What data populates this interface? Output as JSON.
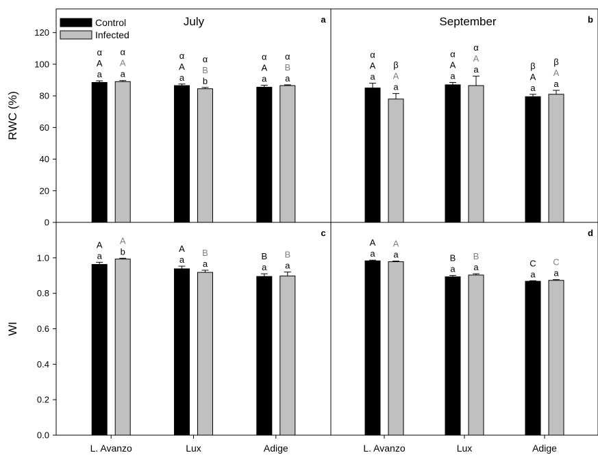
{
  "colors": {
    "control": "#000000",
    "infected": "#c0c0c0",
    "infected_letter": "#808080"
  },
  "chart_data": [
    {
      "panel": "a",
      "type": "bar",
      "title": "July",
      "ylabel": "RWC (%)",
      "xlabel": "",
      "ylim": [
        0,
        135
      ],
      "yticks": [
        "0",
        "20",
        "40",
        "60",
        "80",
        "100",
        "120"
      ],
      "categories": [
        "L. Avanzo",
        "Lux",
        "Adige"
      ],
      "series": [
        {
          "name": "Control",
          "values": [
            88.5,
            86.5,
            85.5
          ],
          "errors": [
            1.0,
            1.0,
            1.2
          ],
          "letters": [
            [
              "α",
              "A",
              "a"
            ],
            [
              "α",
              "A",
              "a"
            ],
            [
              "α",
              "A",
              "a"
            ]
          ]
        },
        {
          "name": "Infected",
          "values": [
            89.0,
            84.5,
            86.5
          ],
          "errors": [
            0.7,
            0.8,
            0.5
          ],
          "letters": [
            [
              "α",
              "A",
              "a"
            ],
            [
              "α",
              "B",
              "b"
            ],
            [
              "α",
              "B",
              "a"
            ]
          ]
        }
      ],
      "legend": "top-left"
    },
    {
      "panel": "b",
      "type": "bar",
      "title": "September",
      "ylabel": "",
      "xlabel": "",
      "ylim": [
        0,
        135
      ],
      "categories": [
        "L. Avanzo",
        "Lux",
        "Adige"
      ],
      "series": [
        {
          "name": "Control",
          "values": [
            85.0,
            87.0,
            79.5
          ],
          "errors": [
            3.0,
            1.5,
            1.5
          ],
          "letters": [
            [
              "α",
              "A",
              "a"
            ],
            [
              "α",
              "A",
              "a"
            ],
            [
              "β",
              "A",
              "a"
            ]
          ]
        },
        {
          "name": "Infected",
          "values": [
            78.0,
            86.5,
            81.0
          ],
          "errors": [
            3.5,
            6.0,
            2.5
          ],
          "letters": [
            [
              "β",
              "A",
              "a"
            ],
            [
              "α",
              "A",
              "a"
            ],
            [
              "β",
              "A",
              "a"
            ]
          ]
        }
      ]
    },
    {
      "panel": "c",
      "type": "bar",
      "title": "",
      "ylabel": "WI",
      "xlabel": "",
      "ylim": [
        0,
        1.2
      ],
      "yticks": [
        "0.0",
        "0.2",
        "0.4",
        "0.6",
        "0.8",
        "1.0"
      ],
      "categories": [
        "L. Avanzo",
        "Lux",
        "Adige"
      ],
      "series": [
        {
          "name": "Control",
          "values": [
            0.963,
            0.938,
            0.895
          ],
          "errors": [
            0.012,
            0.015,
            0.015
          ],
          "letters": [
            [
              "A",
              "a"
            ],
            [
              "A",
              "a"
            ],
            [
              "B",
              "a"
            ]
          ]
        },
        {
          "name": "Infected",
          "values": [
            0.993,
            0.918,
            0.898
          ],
          "errors": [
            0.005,
            0.012,
            0.022
          ],
          "letters": [
            [
              "A",
              "b"
            ],
            [
              "B",
              "a"
            ],
            [
              "B",
              "a"
            ]
          ]
        }
      ]
    },
    {
      "panel": "d",
      "type": "bar",
      "title": "",
      "ylabel": "",
      "xlabel": "",
      "ylim": [
        0,
        1.2
      ],
      "categories": [
        "L. Avanzo",
        "Lux",
        "Adige"
      ],
      "series": [
        {
          "name": "Control",
          "values": [
            0.983,
            0.893,
            0.868
          ],
          "errors": [
            0.004,
            0.008,
            0.003
          ],
          "letters": [
            [
              "A",
              "a"
            ],
            [
              "B",
              "a"
            ],
            [
              "C",
              "a"
            ]
          ]
        },
        {
          "name": "Infected",
          "values": [
            0.978,
            0.903,
            0.873
          ],
          "errors": [
            0.004,
            0.007,
            0.004
          ],
          "letters": [
            [
              "A",
              "a"
            ],
            [
              "B",
              "a"
            ],
            [
              "C",
              "a"
            ]
          ]
        }
      ]
    }
  ]
}
